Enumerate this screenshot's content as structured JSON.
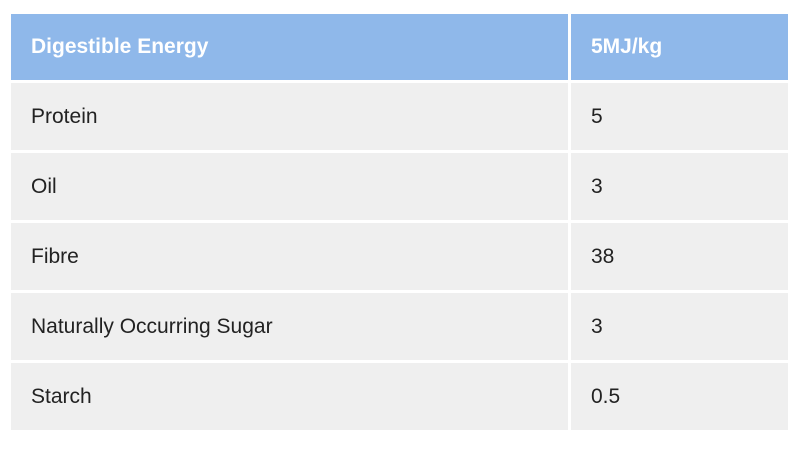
{
  "table": {
    "header": [
      "Digestible Energy",
      "5MJ/kg"
    ],
    "rows": [
      [
        "Protein",
        "5"
      ],
      [
        "Oil",
        "3"
      ],
      [
        "Fibre",
        "38"
      ],
      [
        "Naturally Occurring Sugar",
        "3"
      ],
      [
        "Starch",
        "0.5"
      ]
    ]
  }
}
